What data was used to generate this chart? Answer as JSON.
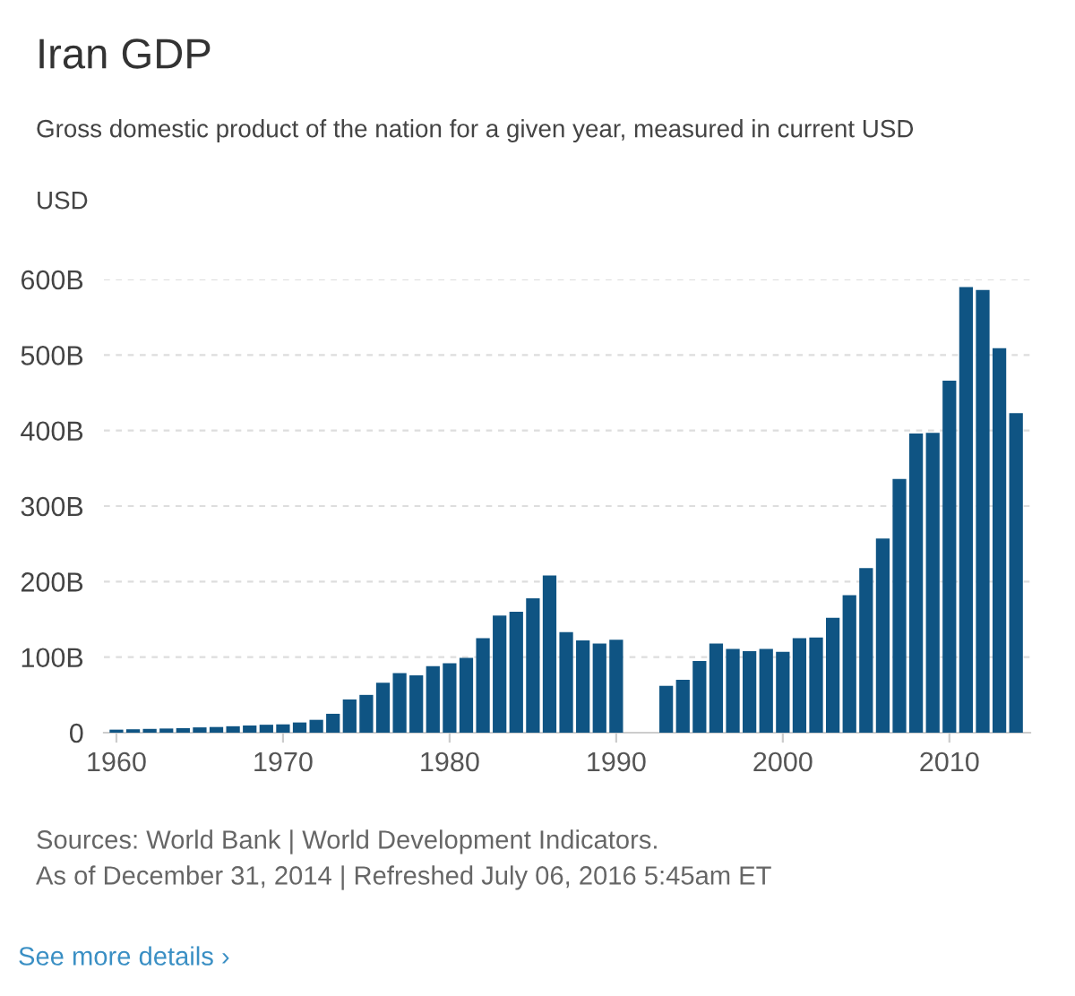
{
  "chart_data": {
    "type": "bar",
    "title": "Iran GDP",
    "subtitle": "Gross domestic product of the nation for a given year, measured in current USD",
    "ylabel": "USD",
    "x": [
      1960,
      1961,
      1962,
      1963,
      1964,
      1965,
      1966,
      1967,
      1968,
      1969,
      1970,
      1971,
      1972,
      1973,
      1974,
      1975,
      1976,
      1977,
      1978,
      1979,
      1980,
      1981,
      1982,
      1983,
      1984,
      1985,
      1986,
      1987,
      1988,
      1989,
      1990,
      1991,
      1992,
      1993,
      1994,
      1995,
      1996,
      1997,
      1998,
      1999,
      2000,
      2001,
      2002,
      2003,
      2004,
      2005,
      2006,
      2007,
      2008,
      2009,
      2010,
      2011,
      2012,
      2013,
      2014
    ],
    "values": [
      4,
      4.5,
      5,
      5.5,
      6,
      7,
      7.5,
      8.5,
      9.5,
      10.5,
      11,
      13.5,
      17,
      25,
      44,
      50,
      66,
      79,
      76,
      88,
      92,
      99,
      125,
      155,
      160,
      178,
      208,
      133,
      122,
      118,
      123,
      null,
      null,
      62,
      70,
      95,
      118,
      111,
      108,
      111,
      107,
      125,
      126,
      152,
      182,
      218,
      257,
      336,
      396,
      397,
      466,
      590,
      586,
      509,
      423
    ],
    "color": "#0f5483",
    "xlim": [
      1959.25,
      2014.85
    ],
    "xticks": [
      1960,
      1970,
      1980,
      1990,
      2000,
      2010
    ],
    "ylim": [
      0,
      600
    ],
    "yticks": [
      {
        "value": 0,
        "label": "0"
      },
      {
        "value": 100,
        "label": "100B"
      },
      {
        "value": 200,
        "label": "200B"
      },
      {
        "value": 300,
        "label": "300B"
      },
      {
        "value": 400,
        "label": "400B"
      },
      {
        "value": 500,
        "label": "500B"
      },
      {
        "value": 600,
        "label": "600B"
      }
    ],
    "grid": "y",
    "annotations": [
      "Sources: World Bank | World Development Indicators.",
      "As of December 31, 2014 | Refreshed July 06, 2016 5:45am ET",
      "See more details ›"
    ]
  }
}
